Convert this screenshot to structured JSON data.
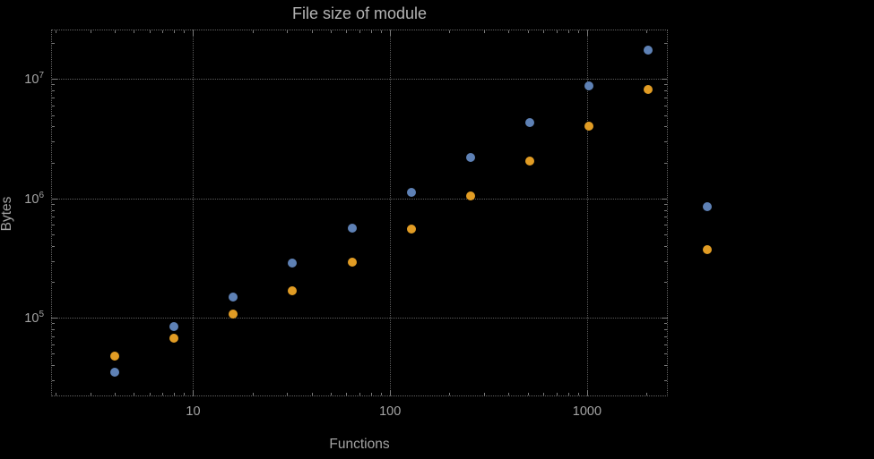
{
  "page": {
    "background": "#000000",
    "text_color": "#a3a3a3"
  },
  "chart_data": {
    "type": "scatter",
    "title": "File size of module",
    "xlabel": "Functions",
    "ylabel": "Bytes",
    "x_scale": "log",
    "y_scale": "log",
    "x_range": [
      1.9,
      2570
    ],
    "y_range": [
      22000,
      26000000
    ],
    "grid": true,
    "legend": false,
    "x": [
      4,
      8,
      16,
      32,
      64,
      128,
      256,
      512,
      1024,
      2048,
      4096
    ],
    "series": [
      {
        "name": "series-blue",
        "color": "#5E81B5",
        "values": [
          35000,
          85000,
          150000,
          290000,
          560000,
          1120000,
          2200000,
          4300000,
          8800000,
          17500000,
          850000
        ]
      },
      {
        "name": "series-orange",
        "color": "#E19C24",
        "values": [
          48000,
          68000,
          108000,
          170000,
          295000,
          550000,
          1050000,
          2050000,
          4000000,
          8200000,
          370000
        ]
      }
    ],
    "x_ticks": [
      {
        "value": 10,
        "label": "10"
      },
      {
        "value": 100,
        "label": "100"
      },
      {
        "value": 1000,
        "label": "1000"
      }
    ],
    "y_ticks": [
      {
        "value": 100000,
        "base": "10",
        "exp": "5"
      },
      {
        "value": 1000000,
        "base": "10",
        "exp": "6"
      },
      {
        "value": 10000000,
        "base": "10",
        "exp": "7"
      }
    ],
    "colors": {
      "grid": "#5c5c5c",
      "frame": "#636363",
      "text": "#a3a3a3"
    }
  }
}
